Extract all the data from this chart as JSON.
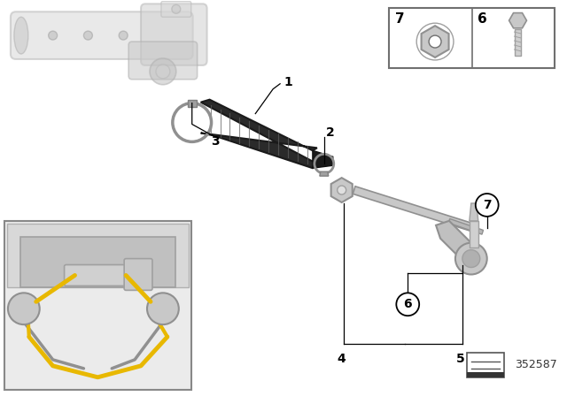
{
  "background_color": "#ffffff",
  "part_number": "352587",
  "fig_width": 6.4,
  "fig_height": 4.48,
  "dpi": 100,
  "boot_color": "#2a2a2a",
  "boot_rib_color": "#555555",
  "rack_color": "#d0d0d0",
  "rack_edge": "#a0a0a0",
  "rod_color": "#c8c8c8",
  "rod_edge": "#909090",
  "clamp_color": "#b0b0b0",
  "tie_rod_end_color": "#c0c0c0",
  "yellow": "#e8b800",
  "inset_bg": "#e8e8e8",
  "label_fs": 10,
  "circled_label_r": 13
}
